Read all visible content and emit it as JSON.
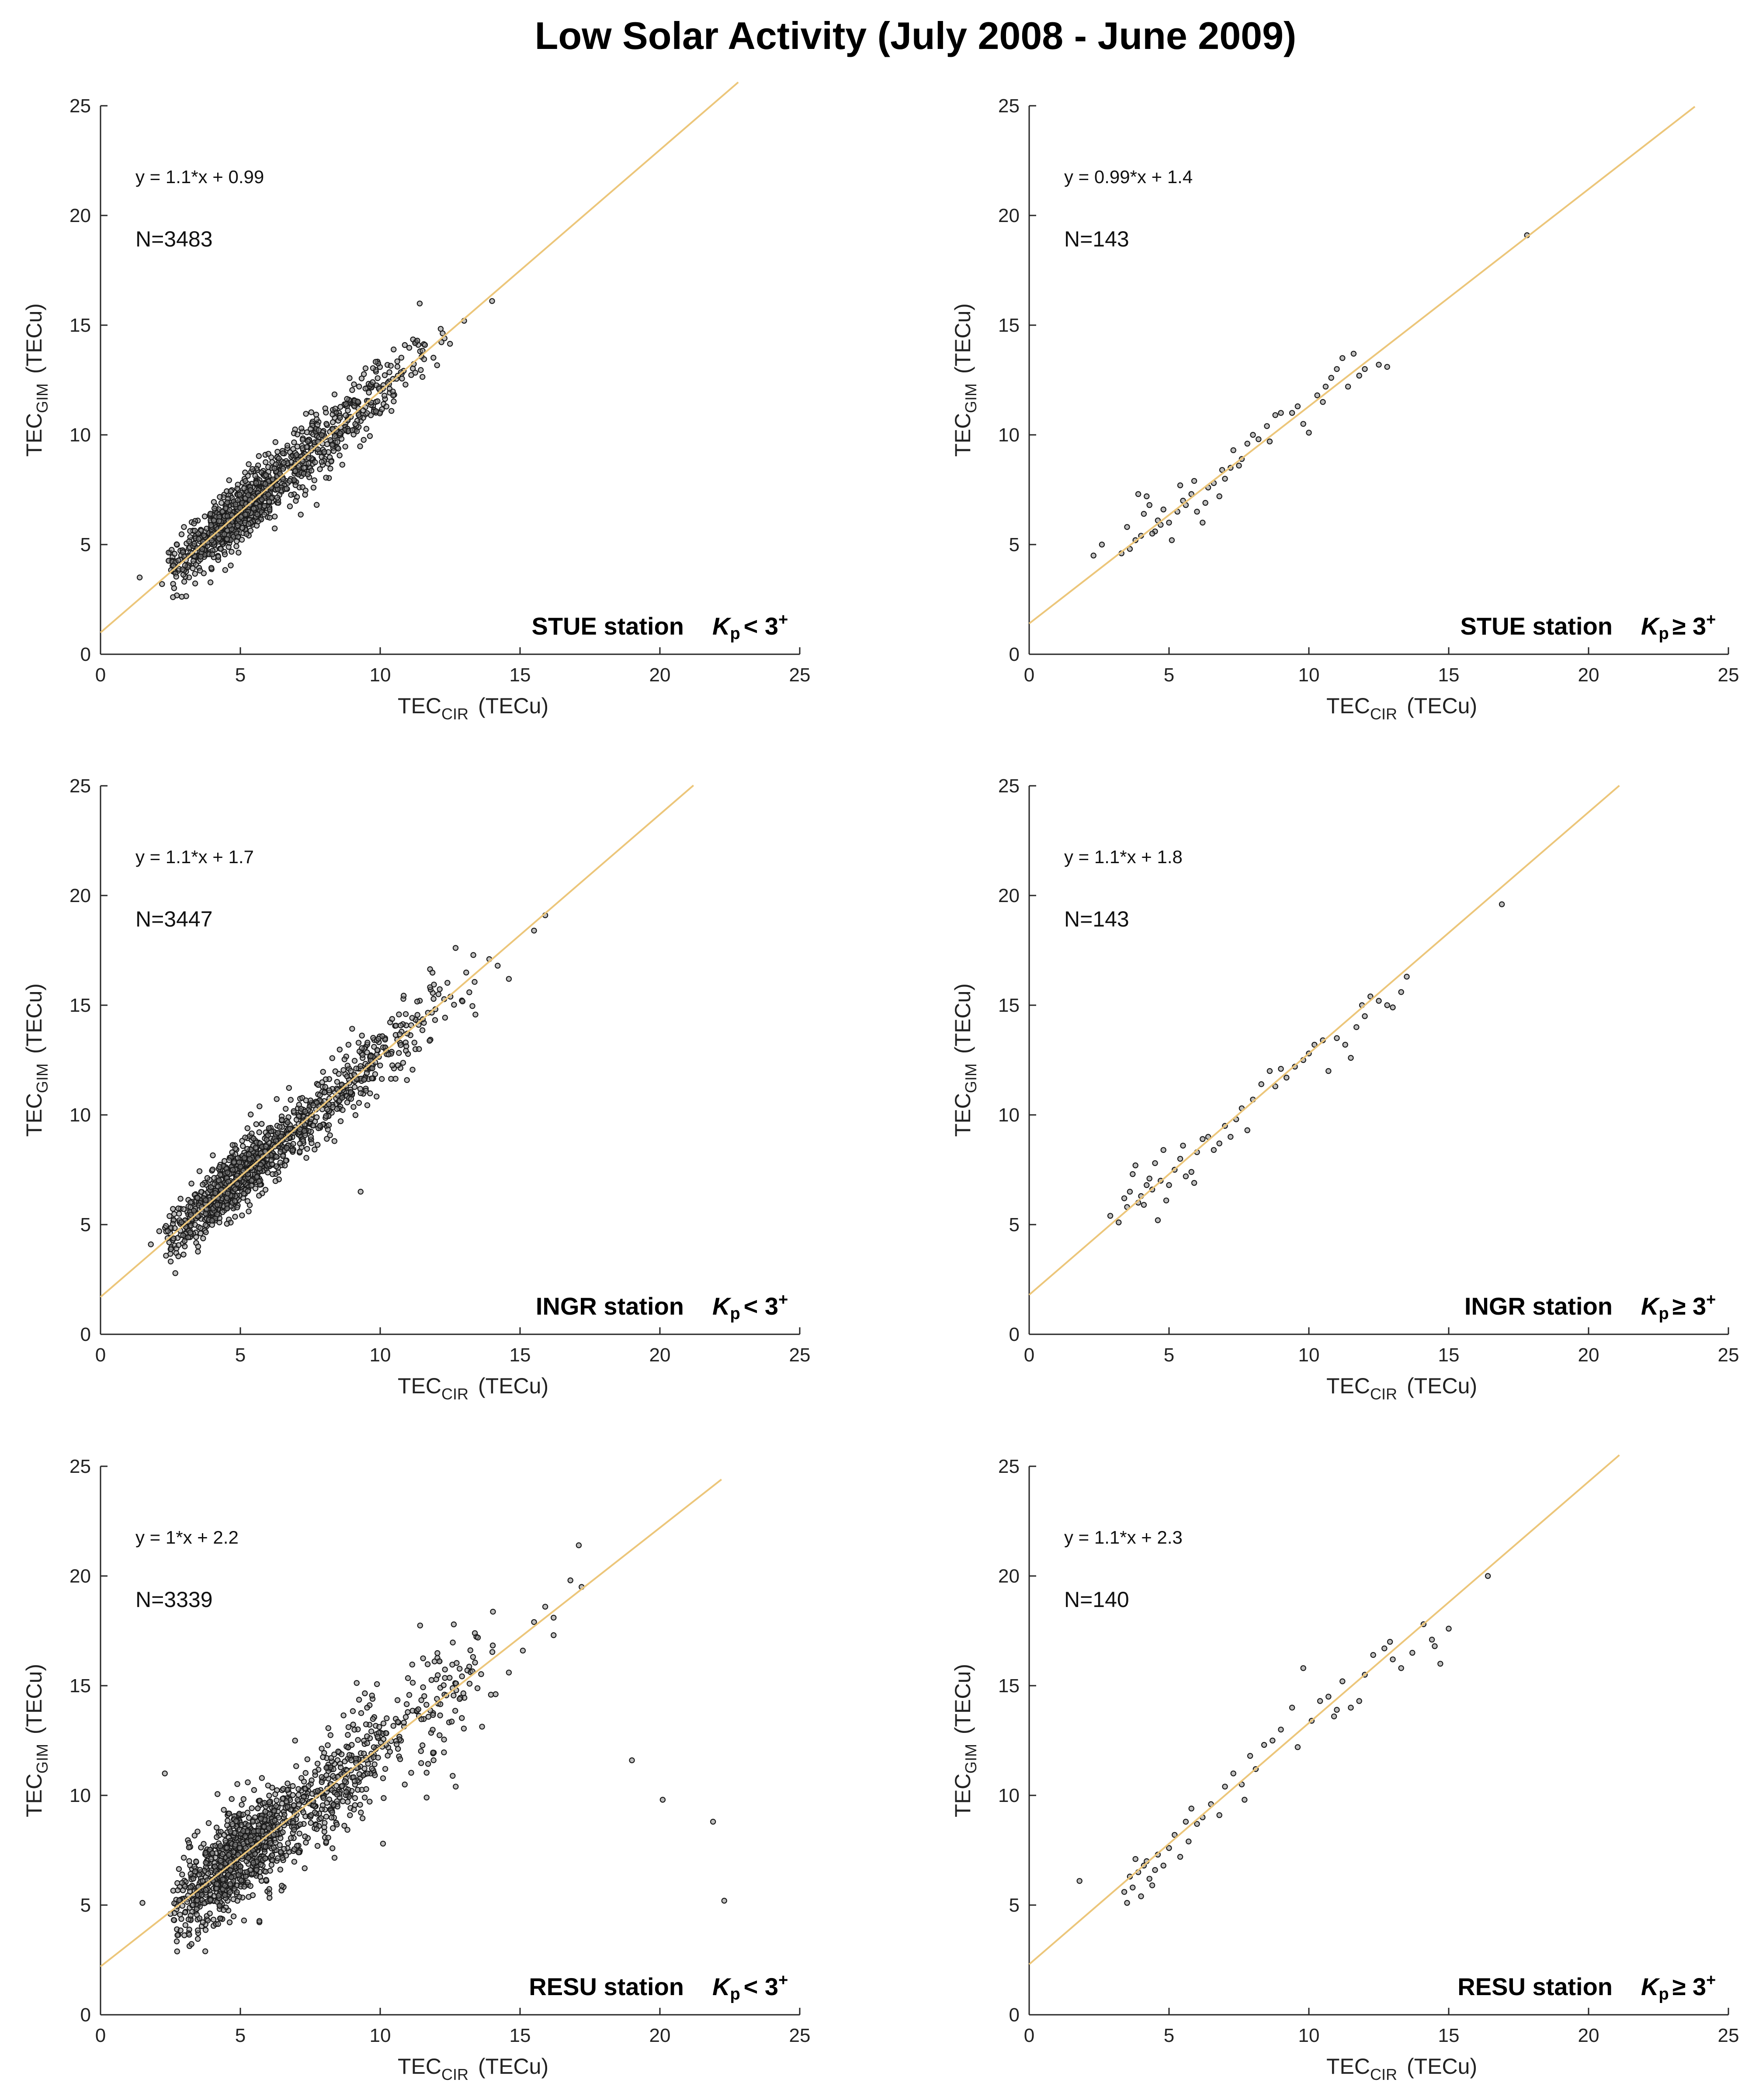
{
  "title": "Low Solar Activity (July 2008 - June 2009)",
  "colors": {
    "fit_line": "#ecc67a",
    "points": "#1a1a1a",
    "axes": "#262626"
  },
  "chart_data": [
    {
      "type": "scatter",
      "id": "stue-low",
      "xlabel": "TEC",
      "xlabel_sub": "CIR",
      "xlabel_unit": "(TECu)",
      "ylabel": "TEC",
      "ylabel_sub": "GIM",
      "ylabel_unit": "(TECu)",
      "xlim": [
        0,
        25
      ],
      "ylim": [
        0,
        25
      ],
      "xticks": [
        0,
        5,
        10,
        15,
        20,
        25
      ],
      "yticks": [
        0,
        5,
        10,
        15,
        20,
        25
      ],
      "equation": "y = 1.1*x + 0.99",
      "n_label": "N=3483",
      "n": 3483,
      "station": "STUE station",
      "kp_text": "< 3",
      "fit": {
        "slope": 1.1,
        "intercept": 0.99,
        "x_end": 22.8
      },
      "cloud": {
        "x_min": 2.4,
        "x_max": 12.5,
        "x_mode": 5.5,
        "scatter": 0.85,
        "count": 1100
      },
      "points": [
        [
          1.4,
          3.5
        ],
        [
          14.0,
          16.1
        ],
        [
          13.0,
          15.2
        ],
        [
          12.3,
          14.4
        ],
        [
          11.6,
          14.1
        ],
        [
          2.2,
          3.2
        ]
      ]
    },
    {
      "type": "scatter",
      "id": "stue-high",
      "xlabel": "TEC",
      "xlabel_sub": "CIR",
      "xlabel_unit": "(TECu)",
      "ylabel": "TEC",
      "ylabel_sub": "GIM",
      "ylabel_unit": "(TECu)",
      "xlim": [
        0,
        25
      ],
      "ylim": [
        0,
        25
      ],
      "xticks": [
        0,
        5,
        10,
        15,
        20,
        25
      ],
      "yticks": [
        0,
        5,
        10,
        15,
        20,
        25
      ],
      "equation": "y = 0.99*x + 1.4",
      "n_label": "N=143",
      "n": 143,
      "station": "STUE station",
      "kp_text": "≥ 3",
      "fit": {
        "slope": 0.99,
        "intercept": 1.4,
        "x_end": 23.8
      },
      "cloud": null,
      "points": [
        [
          2.3,
          4.5
        ],
        [
          2.6,
          5.0
        ],
        [
          3.6,
          4.8
        ],
        [
          3.8,
          5.2
        ],
        [
          4.0,
          5.4
        ],
        [
          4.1,
          6.4
        ],
        [
          4.3,
          6.8
        ],
        [
          3.9,
          7.3
        ],
        [
          4.2,
          7.2
        ],
        [
          4.5,
          5.6
        ],
        [
          4.6,
          6.1
        ],
        [
          4.8,
          6.6
        ],
        [
          5.0,
          6.0
        ],
        [
          5.1,
          5.2
        ],
        [
          5.3,
          6.5
        ],
        [
          5.5,
          7.0
        ],
        [
          5.6,
          6.8
        ],
        [
          5.8,
          7.3
        ],
        [
          6.0,
          6.5
        ],
        [
          6.2,
          6.0
        ],
        [
          6.4,
          7.6
        ],
        [
          6.6,
          7.8
        ],
        [
          6.8,
          7.2
        ],
        [
          7.0,
          8.0
        ],
        [
          7.2,
          8.5
        ],
        [
          7.3,
          9.3
        ],
        [
          7.5,
          8.6
        ],
        [
          7.8,
          9.6
        ],
        [
          8.0,
          10.0
        ],
        [
          8.2,
          9.8
        ],
        [
          8.5,
          10.4
        ],
        [
          8.8,
          10.9
        ],
        [
          9.0,
          11.0
        ],
        [
          9.4,
          11.0
        ],
        [
          9.8,
          10.5
        ],
        [
          10.0,
          10.1
        ],
        [
          10.3,
          11.8
        ],
        [
          10.6,
          12.2
        ],
        [
          10.8,
          12.6
        ],
        [
          11.0,
          13.0
        ],
        [
          11.2,
          13.5
        ],
        [
          11.4,
          12.2
        ],
        [
          11.6,
          13.7
        ],
        [
          12.0,
          13.0
        ],
        [
          12.5,
          13.2
        ],
        [
          12.8,
          13.1
        ],
        [
          17.8,
          19.1
        ],
        [
          5.4,
          7.7
        ],
        [
          4.7,
          5.9
        ],
        [
          3.3,
          4.6
        ],
        [
          6.9,
          8.4
        ],
        [
          8.6,
          9.7
        ],
        [
          9.6,
          11.3
        ],
        [
          10.5,
          11.5
        ],
        [
          11.8,
          12.7
        ],
        [
          3.5,
          5.8
        ],
        [
          5.9,
          7.9
        ],
        [
          7.6,
          8.9
        ],
        [
          6.3,
          6.9
        ],
        [
          4.4,
          5.5
        ]
      ]
    },
    {
      "type": "scatter",
      "id": "ingr-low",
      "xlabel": "TEC",
      "xlabel_sub": "CIR",
      "xlabel_unit": "(TECu)",
      "ylabel": "TEC",
      "ylabel_sub": "GIM",
      "ylabel_unit": "(TECu)",
      "xlim": [
        0,
        25
      ],
      "ylim": [
        0,
        25
      ],
      "xticks": [
        0,
        5,
        10,
        15,
        20,
        25
      ],
      "yticks": [
        0,
        5,
        10,
        15,
        20,
        25
      ],
      "equation": "y = 1.1*x + 1.7",
      "n_label": "N=3447",
      "n": 3447,
      "station": "INGR station",
      "kp_text": "< 3",
      "fit": {
        "slope": 1.1,
        "intercept": 1.7,
        "x_end": 21.2
      },
      "cloud": {
        "x_min": 2.3,
        "x_max": 13.6,
        "x_mode": 5.5,
        "scatter": 0.85,
        "count": 1150
      },
      "points": [
        [
          1.8,
          4.1
        ],
        [
          15.5,
          18.4
        ],
        [
          15.9,
          19.1
        ],
        [
          9.3,
          6.5
        ],
        [
          14.2,
          16.8
        ],
        [
          14.6,
          16.2
        ],
        [
          13.9,
          17.1
        ],
        [
          2.1,
          4.7
        ]
      ]
    },
    {
      "type": "scatter",
      "id": "ingr-high",
      "xlabel": "TEC",
      "xlabel_sub": "CIR",
      "xlabel_unit": "(TECu)",
      "ylabel": "TEC",
      "ylabel_sub": "GIM",
      "ylabel_unit": "(TECu)",
      "xlim": [
        0,
        25
      ],
      "ylim": [
        0,
        25
      ],
      "xticks": [
        0,
        5,
        10,
        15,
        20,
        25
      ],
      "yticks": [
        0,
        5,
        10,
        15,
        20,
        25
      ],
      "equation": "y = 1.1*x + 1.8",
      "n_label": "N=143",
      "n": 143,
      "station": "INGR station",
      "kp_text": "≥ 3",
      "fit": {
        "slope": 1.1,
        "intercept": 1.8,
        "x_end": 21.1
      },
      "cloud": null,
      "points": [
        [
          2.9,
          5.4
        ],
        [
          3.2,
          5.1
        ],
        [
          3.5,
          5.8
        ],
        [
          3.6,
          6.5
        ],
        [
          3.7,
          7.3
        ],
        [
          3.8,
          7.7
        ],
        [
          3.9,
          6.0
        ],
        [
          4.0,
          6.3
        ],
        [
          4.1,
          5.9
        ],
        [
          4.2,
          6.8
        ],
        [
          4.3,
          7.1
        ],
        [
          4.4,
          6.6
        ],
        [
          4.5,
          7.8
        ],
        [
          4.6,
          5.2
        ],
        [
          4.7,
          7.0
        ],
        [
          4.9,
          6.1
        ],
        [
          5.0,
          6.8
        ],
        [
          5.2,
          7.5
        ],
        [
          5.4,
          8.0
        ],
        [
          5.5,
          8.6
        ],
        [
          5.6,
          7.2
        ],
        [
          5.8,
          7.4
        ],
        [
          6.0,
          8.3
        ],
        [
          6.2,
          8.9
        ],
        [
          6.4,
          9.0
        ],
        [
          6.6,
          8.4
        ],
        [
          6.8,
          8.7
        ],
        [
          7.0,
          9.5
        ],
        [
          7.4,
          9.8
        ],
        [
          7.6,
          10.3
        ],
        [
          7.8,
          9.3
        ],
        [
          8.0,
          10.7
        ],
        [
          8.3,
          11.4
        ],
        [
          8.6,
          12.0
        ],
        [
          8.8,
          11.3
        ],
        [
          9.2,
          11.7
        ],
        [
          9.5,
          12.2
        ],
        [
          9.8,
          12.5
        ],
        [
          10.0,
          12.8
        ],
        [
          10.2,
          13.2
        ],
        [
          10.5,
          13.4
        ],
        [
          10.7,
          12.0
        ],
        [
          11.0,
          13.5
        ],
        [
          11.3,
          13.2
        ],
        [
          11.5,
          12.6
        ],
        [
          11.7,
          14.0
        ],
        [
          12.0,
          14.5
        ],
        [
          12.2,
          15.4
        ],
        [
          12.5,
          15.2
        ],
        [
          12.8,
          15.0
        ],
        [
          13.0,
          14.9
        ],
        [
          13.3,
          15.6
        ],
        [
          13.5,
          16.3
        ],
        [
          16.9,
          19.6
        ],
        [
          4.8,
          8.4
        ],
        [
          5.9,
          6.9
        ],
        [
          7.2,
          9.0
        ],
        [
          9.0,
          12.1
        ],
        [
          11.9,
          15.0
        ],
        [
          3.4,
          6.2
        ]
      ]
    },
    {
      "type": "scatter",
      "id": "resu-low",
      "xlabel": "TEC",
      "xlabel_sub": "CIR",
      "xlabel_unit": "(TECu)",
      "ylabel": "TEC",
      "ylabel_sub": "GIM",
      "ylabel_unit": "(TECu)",
      "xlim": [
        0,
        25
      ],
      "ylim": [
        0,
        25
      ],
      "xticks": [
        0,
        5,
        10,
        15,
        20,
        25
      ],
      "yticks": [
        0,
        5,
        10,
        15,
        20,
        25
      ],
      "equation": "y = 1*x + 2.2",
      "n_label": "N=3339",
      "n": 3339,
      "station": "RESU station",
      "kp_text": "< 3",
      "fit": {
        "slope": 1.0,
        "intercept": 2.2,
        "x_end": 22.2
      },
      "cloud": {
        "x_min": 2.6,
        "x_max": 14.5,
        "x_mode": 5.5,
        "scatter": 1.3,
        "count": 1250
      },
      "points": [
        [
          1.5,
          5.1
        ],
        [
          2.3,
          11.0
        ],
        [
          19.0,
          11.6
        ],
        [
          20.1,
          9.8
        ],
        [
          21.9,
          8.8
        ],
        [
          22.3,
          5.2
        ],
        [
          16.8,
          19.8
        ],
        [
          17.1,
          21.4
        ],
        [
          17.2,
          19.5
        ],
        [
          16.2,
          18.1
        ],
        [
          15.5,
          17.9
        ],
        [
          15.9,
          18.6
        ],
        [
          15.1,
          16.6
        ],
        [
          16.2,
          17.3
        ],
        [
          14.6,
          15.6
        ],
        [
          12.7,
          10.4
        ],
        [
          10.1,
          7.8
        ],
        [
          2.5,
          4.6
        ]
      ]
    },
    {
      "type": "scatter",
      "id": "resu-high",
      "xlabel": "TEC",
      "xlabel_sub": "CIR",
      "xlabel_unit": "(TECu)",
      "ylabel": "TEC",
      "ylabel_sub": "GIM",
      "ylabel_unit": "(TECu)",
      "xlim": [
        0,
        25
      ],
      "ylim": [
        0,
        25
      ],
      "xticks": [
        0,
        5,
        10,
        15,
        20,
        25
      ],
      "yticks": [
        0,
        5,
        10,
        15,
        20,
        25
      ],
      "equation": "y = 1.1*x + 2.3",
      "n_label": "N=140",
      "n": 140,
      "station": "RESU station",
      "kp_text": "≥ 3",
      "fit": {
        "slope": 1.1,
        "intercept": 2.3,
        "x_end": 21.1
      },
      "cloud": null,
      "points": [
        [
          1.8,
          6.1
        ],
        [
          3.4,
          5.6
        ],
        [
          3.5,
          5.1
        ],
        [
          3.6,
          6.3
        ],
        [
          3.8,
          7.1
        ],
        [
          3.9,
          6.5
        ],
        [
          4.0,
          5.4
        ],
        [
          4.1,
          6.8
        ],
        [
          4.2,
          7.0
        ],
        [
          4.3,
          6.2
        ],
        [
          4.5,
          6.6
        ],
        [
          4.6,
          7.3
        ],
        [
          4.8,
          6.8
        ],
        [
          5.0,
          7.6
        ],
        [
          5.2,
          8.2
        ],
        [
          5.4,
          7.2
        ],
        [
          5.6,
          8.8
        ],
        [
          5.8,
          9.4
        ],
        [
          6.0,
          8.7
        ],
        [
          6.2,
          9.0
        ],
        [
          6.5,
          9.6
        ],
        [
          6.8,
          9.1
        ],
        [
          7.0,
          10.4
        ],
        [
          7.3,
          11.0
        ],
        [
          7.6,
          10.5
        ],
        [
          7.9,
          11.8
        ],
        [
          8.1,
          11.2
        ],
        [
          8.4,
          12.3
        ],
        [
          8.7,
          12.5
        ],
        [
          9.0,
          13.0
        ],
        [
          9.4,
          14.0
        ],
        [
          9.8,
          15.8
        ],
        [
          10.1,
          13.4
        ],
        [
          10.4,
          14.3
        ],
        [
          10.7,
          14.5
        ],
        [
          10.9,
          13.6
        ],
        [
          11.2,
          15.2
        ],
        [
          11.5,
          14.0
        ],
        [
          11.8,
          14.3
        ],
        [
          12.0,
          15.5
        ],
        [
          12.3,
          16.4
        ],
        [
          12.7,
          16.7
        ],
        [
          13.0,
          16.2
        ],
        [
          13.3,
          15.8
        ],
        [
          13.7,
          16.5
        ],
        [
          14.1,
          17.8
        ],
        [
          14.4,
          17.1
        ],
        [
          14.5,
          16.8
        ],
        [
          14.7,
          16.0
        ],
        [
          15.0,
          17.6
        ],
        [
          16.4,
          20.0
        ],
        [
          12.9,
          17.0
        ],
        [
          4.4,
          5.9
        ],
        [
          5.7,
          7.9
        ],
        [
          7.7,
          9.8
        ],
        [
          9.6,
          12.2
        ],
        [
          11.0,
          13.9
        ],
        [
          3.7,
          5.8
        ]
      ]
    }
  ]
}
